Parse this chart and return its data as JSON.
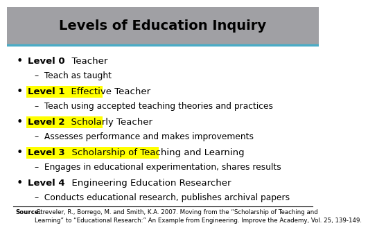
{
  "title": "Levels of Education Inquiry",
  "title_bg_color": "#a0a0a4",
  "title_line_color": "#4bacc6",
  "body_bg_color": "#ffffff",
  "highlight_color": "#ffff00",
  "title_fontsize": 14,
  "bullet_fontsize": 9.5,
  "sub_fontsize": 8.8,
  "source_fontsize": 6.2,
  "levels": [
    {
      "bold_label": "Level 0",
      "title_text": "  Teacher",
      "highlight": false,
      "sub": "Teach as taught"
    },
    {
      "bold_label": "Level 1",
      "title_text": "  Effective Teacher",
      "highlight": true,
      "sub": "Teach using accepted teaching theories and practices"
    },
    {
      "bold_label": "Level 2",
      "title_text": "  Scholarly Teacher",
      "highlight": true,
      "sub": "Assesses performance and makes improvements"
    },
    {
      "bold_label": "Level 3",
      "title_text": "  Scholarship of Teaching and Learning",
      "highlight": true,
      "sub": "Engages in educational experimentation, shares results"
    },
    {
      "bold_label": "Level 4",
      "title_text": "  Engineering Education Researcher",
      "highlight": false,
      "sub": "Conducts educational research, publishes archival papers"
    }
  ],
  "source_bold": "Source:",
  "source_normal": " Streveler, R., Borrego, M. and Smith, K.A. 2007. Moving from the “Scholarship of Teaching and Learning” to “Educational Research:” An Example from Engineering. Improve the Academy, Vol. 25, 139-149."
}
